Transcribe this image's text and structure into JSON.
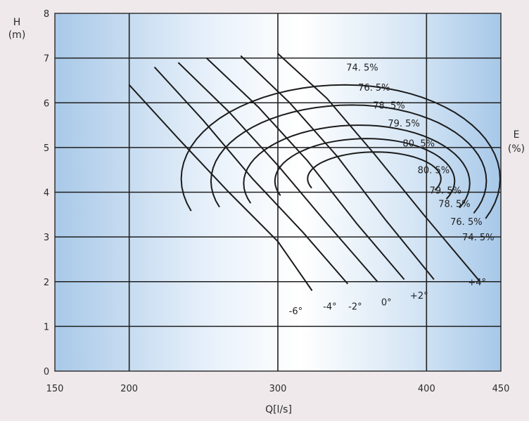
{
  "chart_data": {
    "type": "line",
    "xlabel": "Q[l/s]",
    "ylabel_main": "H",
    "ylabel_unit": "(m)",
    "right_label_main": "E",
    "right_label_unit": "(%)",
    "xlim": [
      150,
      450
    ],
    "ylim": [
      0,
      8
    ],
    "xticks": [
      150,
      200,
      300,
      400,
      450
    ],
    "yticks": [
      0,
      1,
      2,
      3,
      4,
      5,
      6,
      7,
      8
    ],
    "grid": true,
    "blade_angle_curves": [
      {
        "name": "-6°",
        "x": [
          200,
          233,
          267,
          300,
          323
        ],
        "y": [
          6.4,
          5.2,
          4.0,
          2.9,
          1.8
        ],
        "label_x": 312,
        "label_y": 1.35
      },
      {
        "name": "-4°",
        "x": [
          217,
          250,
          283,
          317,
          347
        ],
        "y": [
          6.8,
          5.6,
          4.3,
          3.1,
          1.95
        ],
        "label_x": 335,
        "label_y": 1.45
      },
      {
        "name": "-2°",
        "x": [
          233,
          267,
          300,
          333,
          367
        ],
        "y": [
          6.9,
          5.8,
          4.6,
          3.3,
          2.0
        ],
        "label_x": 352,
        "label_y": 1.45
      },
      {
        "name": "0°",
        "x": [
          252,
          287,
          320,
          353,
          385
        ],
        "y": [
          7.0,
          5.9,
          4.7,
          3.3,
          2.05
        ],
        "label_x": 373,
        "label_y": 1.55
      },
      {
        "name": "+2°",
        "x": [
          275,
          308,
          340,
          372,
          405
        ],
        "y": [
          7.05,
          6.0,
          4.8,
          3.4,
          2.05
        ],
        "label_x": 395,
        "label_y": 1.7
      },
      {
        "name": "+4°",
        "x": [
          300,
          333,
          365,
          398,
          436
        ],
        "y": [
          7.1,
          6.1,
          4.85,
          3.5,
          2.0
        ],
        "label_x": 434,
        "label_y": 2.0
      }
    ],
    "efficiency_contours": [
      {
        "name": "74.5%",
        "label_left": "74. 5%",
        "label_right": "74. 5%"
      },
      {
        "name": "76.5%",
        "label_left": "76. 5%",
        "label_right": "76. 5%"
      },
      {
        "name": "78.5%",
        "label_left": "78. 5%",
        "label_right": "78. 5%"
      },
      {
        "name": "79.5%",
        "label_left": "79. 5%",
        "label_right": "79. 5%"
      },
      {
        "name": "80.5%",
        "label_left": "80. 5%",
        "label_right": "80. 5%"
      }
    ],
    "efficiency_label_positions_data": {
      "left": [
        [
          346,
          6.8
        ],
        [
          354,
          6.35
        ],
        [
          364,
          5.95
        ],
        [
          374,
          5.55
        ],
        [
          384,
          5.1
        ]
      ],
      "right": [
        [
          394,
          4.5
        ],
        [
          402,
          4.05
        ],
        [
          408,
          3.75
        ],
        [
          416,
          3.35
        ],
        [
          424,
          3.0
        ]
      ]
    }
  }
}
